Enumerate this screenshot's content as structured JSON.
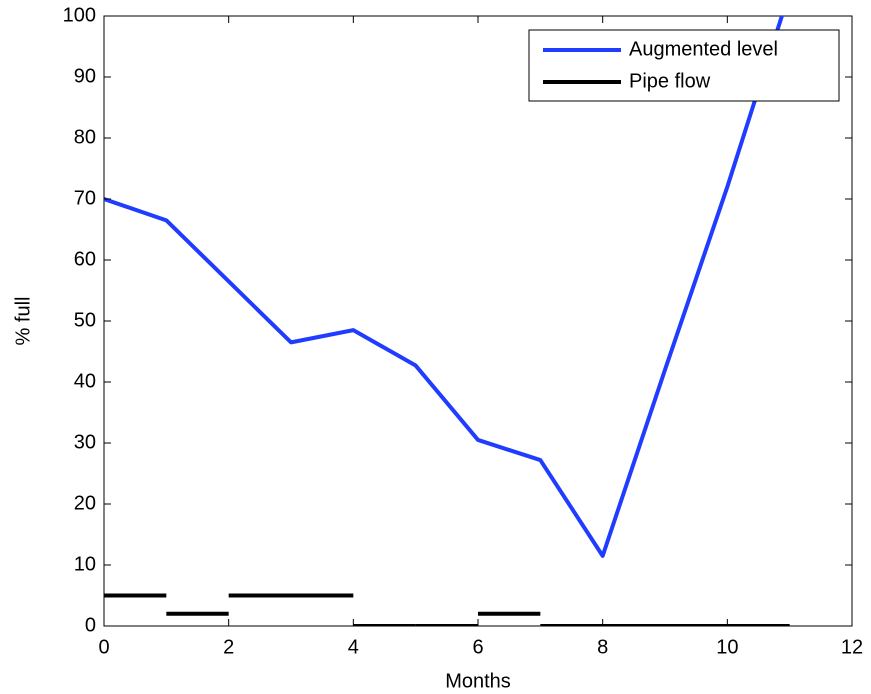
{
  "chart_data": {
    "type": "line",
    "x_label": "Months",
    "y_label": "% full",
    "xlim": [
      0,
      12
    ],
    "xticks": [
      0,
      2,
      4,
      6,
      8,
      10,
      12
    ],
    "ylim": [
      0,
      100
    ],
    "yticks": [
      0,
      10,
      20,
      30,
      40,
      50,
      60,
      70,
      80,
      90,
      100
    ],
    "legend": "top-right",
    "series": [
      {
        "name": "Augmented level",
        "color": "#1f3cff",
        "style": "line",
        "x": [
          0,
          1,
          2,
          3,
          4,
          5,
          6,
          7,
          8,
          9,
          10,
          11
        ],
        "values": [
          70,
          66.5,
          56.5,
          46.5,
          48.5,
          42.7,
          30.5,
          27.2,
          11.5,
          42,
          72,
          104
        ]
      },
      {
        "name": "Pipe flow",
        "color": "#000000",
        "style": "segments",
        "x": [
          0,
          1,
          2,
          3,
          4,
          5,
          6,
          7,
          8,
          9,
          10
        ],
        "x_end": [
          1,
          2,
          3,
          4,
          5,
          6,
          7,
          8,
          9,
          10,
          11
        ],
        "values": [
          5,
          2,
          5,
          5,
          0,
          0,
          2,
          0,
          0,
          0,
          0
        ]
      }
    ]
  }
}
